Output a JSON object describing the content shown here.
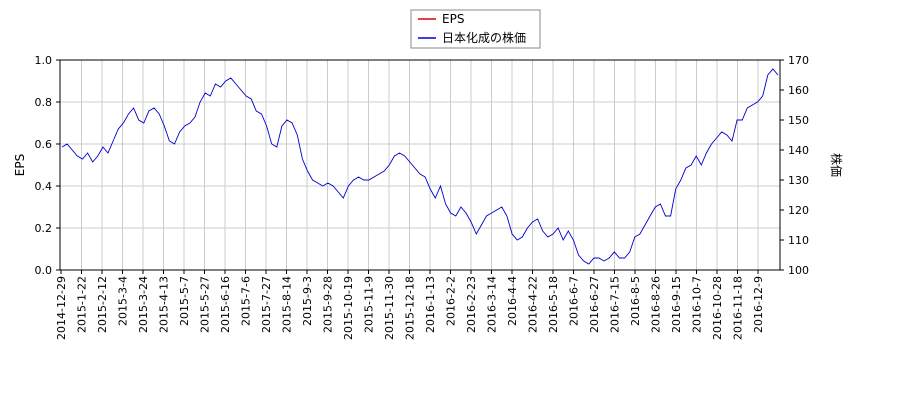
{
  "chart_data": {
    "type": "line",
    "legend": {
      "placement": "top-center",
      "entries": [
        {
          "label": "EPS",
          "color": "#dd0000"
        },
        {
          "label": "日本化成の株価",
          "color": "#0000cc"
        }
      ]
    },
    "y_left": {
      "label": "EPS",
      "range": [
        0,
        1.0
      ],
      "ticks": [
        "0.0",
        "0.2",
        "0.4",
        "0.6",
        "0.8",
        "1.0"
      ]
    },
    "y_right": {
      "label": "株価",
      "range": [
        100,
        170
      ],
      "ticks": [
        "100",
        "110",
        "120",
        "130",
        "140",
        "150",
        "160",
        "170"
      ]
    },
    "x_ticks": [
      "2014-12-29",
      "2015-1-22",
      "2015-2-12",
      "2015-3-4",
      "2015-3-24",
      "2015-4-13",
      "2015-5-7",
      "2015-5-27",
      "2015-6-16",
      "2015-7-6",
      "2015-7-27",
      "2015-8-14",
      "2015-9-3",
      "2015-9-28",
      "2015-10-19",
      "2015-11-9",
      "2015-11-30",
      "2015-12-18",
      "2016-1-13",
      "2016-2-2",
      "2016-2-23",
      "2016-3-14",
      "2016-4-4",
      "2016-4-22",
      "2016-5-18",
      "2016-6-7",
      "2016-6-27",
      "2016-7-15",
      "2016-8-5",
      "2016-8-26",
      "2016-9-15",
      "2016-10-7",
      "2016-10-28",
      "2016-11-18",
      "2016-12-9"
    ],
    "grid": true,
    "series": [
      {
        "name": "日本化成の株価",
        "axis": "right",
        "color": "#0000cc",
        "x_range": [
          "2014-12-29",
          "2016-12-28"
        ],
        "values": [
          141,
          142,
          140,
          138,
          137,
          139,
          136,
          138,
          141,
          139,
          143,
          147,
          149,
          152,
          154,
          150,
          149,
          153,
          154,
          152,
          148,
          143,
          142,
          146,
          148,
          149,
          151,
          156,
          159,
          158,
          162,
          161,
          163,
          164,
          162,
          160,
          158,
          157,
          153,
          152,
          148,
          142,
          141,
          148,
          150,
          149,
          145,
          137,
          133,
          130,
          129,
          128,
          129,
          128,
          126,
          124,
          128,
          130,
          131,
          130,
          130,
          131,
          132,
          133,
          135,
          138,
          139,
          138,
          136,
          134,
          132,
          131,
          127,
          124,
          128,
          122,
          119,
          118,
          121,
          119,
          116,
          112,
          115,
          118,
          119,
          120,
          121,
          118,
          112,
          110,
          111,
          114,
          116,
          117,
          113,
          111,
          112,
          114,
          110,
          113,
          110,
          105,
          103,
          102,
          104,
          104,
          103,
          104,
          106,
          104,
          104,
          106,
          111,
          112,
          115,
          118,
          121,
          122,
          118,
          118,
          127,
          130,
          134,
          135,
          138,
          135,
          139,
          142,
          144,
          146,
          145,
          143,
          150,
          150,
          154,
          155,
          156,
          158,
          165,
          167,
          165
        ]
      },
      {
        "name": "EPS",
        "axis": "left",
        "color": "#dd0000",
        "values": []
      }
    ]
  }
}
